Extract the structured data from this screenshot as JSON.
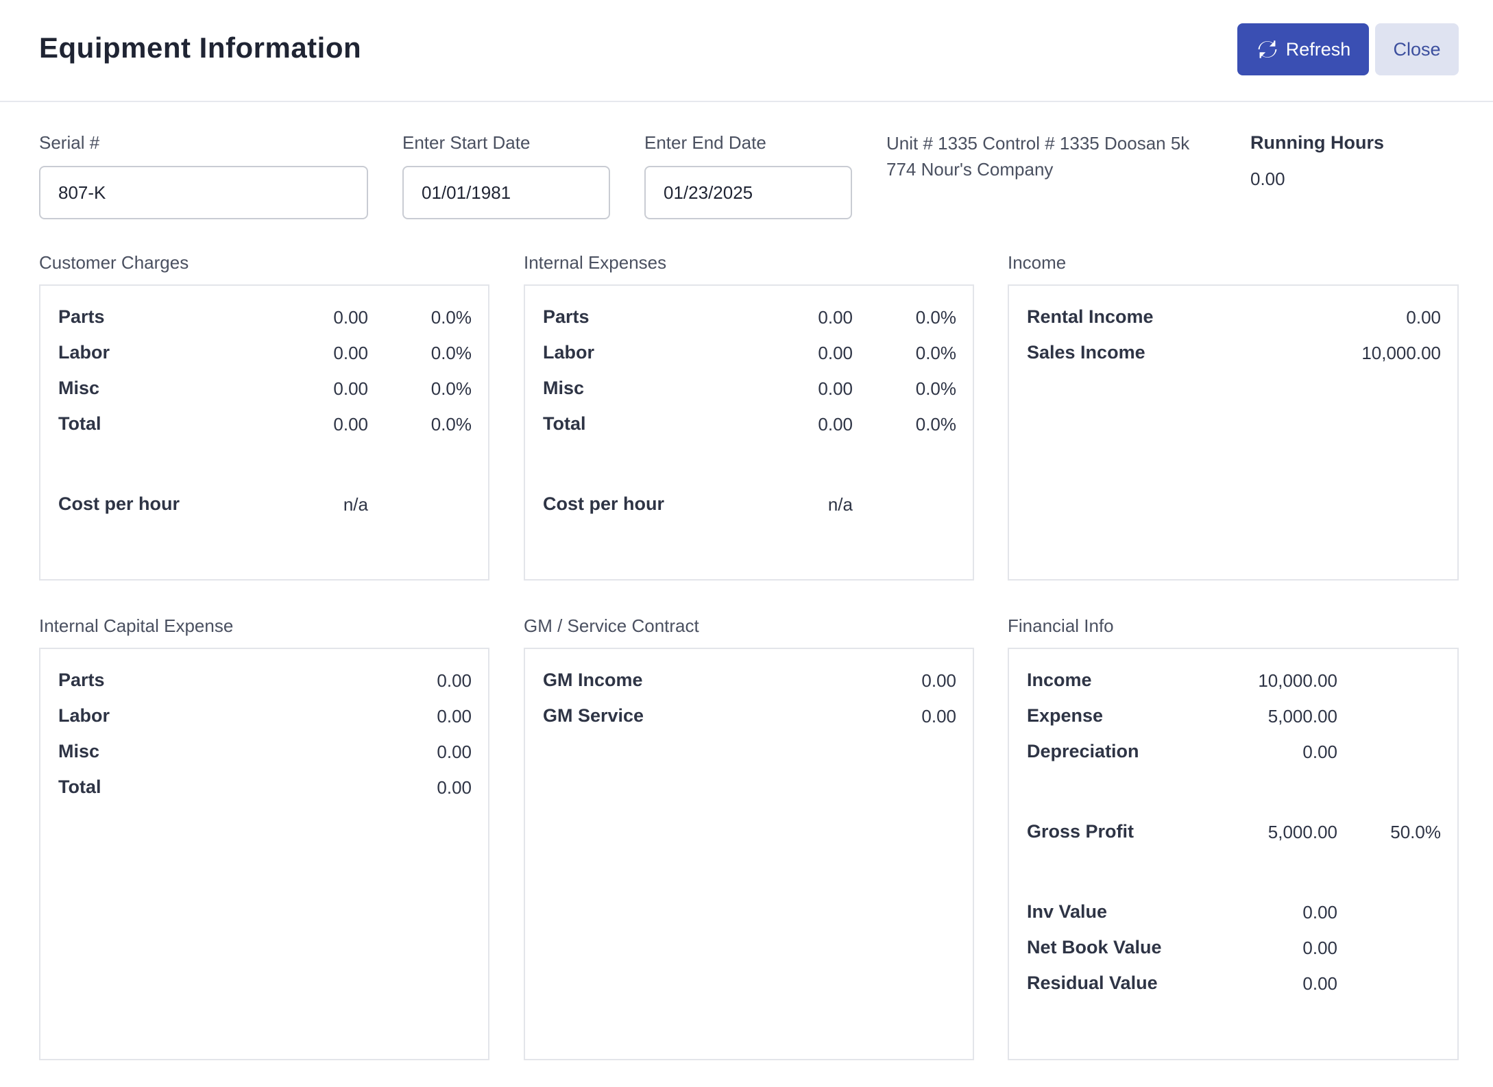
{
  "header": {
    "title": "Equipment Information",
    "refresh_label": "Refresh",
    "close_label": "Close"
  },
  "filters": {
    "serial_label": "Serial #",
    "serial_value": "807-K",
    "start_label": "Enter Start Date",
    "start_value": "01/01/1981",
    "end_label": "Enter End Date",
    "end_value": "01/23/2025",
    "unit_line1": "Unit # 1335 Control # 1335 Doosan 5k",
    "unit_line2": "774 Nour's Company",
    "running_hours_label": "Running Hours",
    "running_hours_value": "0.00"
  },
  "customer_charges": {
    "title": "Customer Charges",
    "rows": [
      {
        "label": "Parts",
        "value": "0.00",
        "pct": "0.0%"
      },
      {
        "label": "Labor",
        "value": "0.00",
        "pct": "0.0%"
      },
      {
        "label": "Misc",
        "value": "0.00",
        "pct": "0.0%"
      },
      {
        "label": "Total",
        "value": "0.00",
        "pct": "0.0%"
      }
    ],
    "cost_label": "Cost per hour",
    "cost_value": "n/a"
  },
  "internal_expenses": {
    "title": "Internal Expenses",
    "rows": [
      {
        "label": "Parts",
        "value": "0.00",
        "pct": "0.0%"
      },
      {
        "label": "Labor",
        "value": "0.00",
        "pct": "0.0%"
      },
      {
        "label": "Misc",
        "value": "0.00",
        "pct": "0.0%"
      },
      {
        "label": "Total",
        "value": "0.00",
        "pct": "0.0%"
      }
    ],
    "cost_label": "Cost per hour",
    "cost_value": "n/a"
  },
  "income": {
    "title": "Income",
    "rows": [
      {
        "label": "Rental Income",
        "value": "0.00"
      },
      {
        "label": "Sales Income",
        "value": "10,000.00"
      }
    ]
  },
  "internal_capital": {
    "title": "Internal Capital Expense",
    "rows": [
      {
        "label": "Parts",
        "value": "0.00"
      },
      {
        "label": "Labor",
        "value": "0.00"
      },
      {
        "label": "Misc",
        "value": "0.00"
      },
      {
        "label": "Total",
        "value": "0.00"
      }
    ]
  },
  "gm_service": {
    "title": "GM / Service Contract",
    "rows": [
      {
        "label": "GM Income",
        "value": "0.00"
      },
      {
        "label": "GM Service",
        "value": "0.00"
      }
    ]
  },
  "financial": {
    "title": "Financial Info",
    "income_label": "Income",
    "income_value": "10,000.00",
    "expense_label": "Expense",
    "expense_value": "5,000.00",
    "depreciation_label": "Depreciation",
    "depreciation_value": "0.00",
    "gross_profit_label": "Gross Profit",
    "gross_profit_value": "5,000.00",
    "gross_profit_pct": "50.0%",
    "inv_value_label": "Inv Value",
    "inv_value_value": "0.00",
    "net_book_label": "Net Book Value",
    "net_book_value": "0.00",
    "residual_label": "Residual Value",
    "residual_value": "0.00"
  },
  "colors": {
    "primary": "#3a4fb3",
    "secondary_bg": "#dfe3f1",
    "border": "#e3e5ea"
  }
}
